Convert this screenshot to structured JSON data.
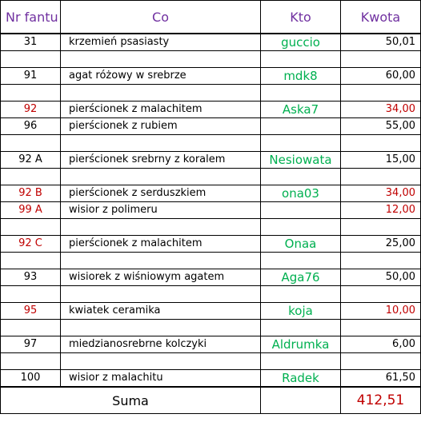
{
  "header": {
    "nr": "Nr fantu",
    "co": "Co",
    "kto": "Kto",
    "kwota": "Kwota"
  },
  "rows": [
    {
      "nr": "31",
      "co": "krzemień psasiasty",
      "kto": "guccio",
      "kwota": "50,01",
      "nr_red": false,
      "kwota_red": false
    },
    {
      "nr": "",
      "co": "",
      "kto": "",
      "kwota": "",
      "nr_red": false,
      "kwota_red": false
    },
    {
      "nr": "91",
      "co": "agat różowy w srebrze",
      "kto": "mdk8",
      "kwota": "60,00",
      "nr_red": false,
      "kwota_red": false
    },
    {
      "nr": "",
      "co": "",
      "kto": "",
      "kwota": "",
      "nr_red": false,
      "kwota_red": false
    },
    {
      "nr": "92",
      "co": "pierścionek z malachitem",
      "kto": "Aska7",
      "kwota": "34,00",
      "nr_red": true,
      "kwota_red": true
    },
    {
      "nr": "96",
      "co": "pierścionek z rubiem",
      "kto": "",
      "kwota": "55,00",
      "nr_red": false,
      "kwota_red": false
    },
    {
      "nr": "",
      "co": "",
      "kto": "",
      "kwota": "",
      "nr_red": false,
      "kwota_red": false
    },
    {
      "nr": "92 A",
      "co": "pierścionek srebrny z koralem",
      "kto": "Nesiowata",
      "kwota": "15,00",
      "nr_red": false,
      "kwota_red": false
    },
    {
      "nr": "",
      "co": "",
      "kto": "",
      "kwota": "",
      "nr_red": false,
      "kwota_red": false
    },
    {
      "nr": "92 B",
      "co": "pierścionek z serduszkiem",
      "kto": "ona03",
      "kwota": "34,00",
      "nr_red": true,
      "kwota_red": true
    },
    {
      "nr": "99 A",
      "co": "wisior z polimeru",
      "kto": "",
      "kwota": "12,00",
      "nr_red": true,
      "kwota_red": true
    },
    {
      "nr": "",
      "co": "",
      "kto": "",
      "kwota": "",
      "nr_red": false,
      "kwota_red": false
    },
    {
      "nr": "92 C",
      "co": "pierścionek z malachitem",
      "kto": "Onaa",
      "kwota": "25,00",
      "nr_red": true,
      "kwota_red": false
    },
    {
      "nr": "",
      "co": "",
      "kto": "",
      "kwota": "",
      "nr_red": false,
      "kwota_red": false
    },
    {
      "nr": "93",
      "co": "wisiorek z wiśniowym agatem",
      "kto": "Aga76",
      "kwota": "50,00",
      "nr_red": false,
      "kwota_red": false
    },
    {
      "nr": "",
      "co": "",
      "kto": "",
      "kwota": "",
      "nr_red": false,
      "kwota_red": false
    },
    {
      "nr": "95",
      "co": "kwiatek ceramika",
      "kto": "koja",
      "kwota": "10,00",
      "nr_red": true,
      "kwota_red": true
    },
    {
      "nr": "",
      "co": "",
      "kto": "",
      "kwota": "",
      "nr_red": false,
      "kwota_red": false
    },
    {
      "nr": "97",
      "co": "miedzianosrebrne kolczyki",
      "kto": "Aldrumka",
      "kwota": "6,00",
      "nr_red": false,
      "kwota_red": false
    },
    {
      "nr": "",
      "co": "",
      "kto": "",
      "kwota": "",
      "nr_red": false,
      "kwota_red": false
    },
    {
      "nr": "100",
      "co": "wisior z malachitu",
      "kto": "Radek",
      "kwota": "61,50",
      "nr_red": false,
      "kwota_red": false
    }
  ],
  "summary": {
    "label": "Suma",
    "value": "412,51"
  },
  "colors": {
    "header_text": "#7030a0",
    "name_text": "#00b050",
    "highlight_red": "#c00000"
  }
}
